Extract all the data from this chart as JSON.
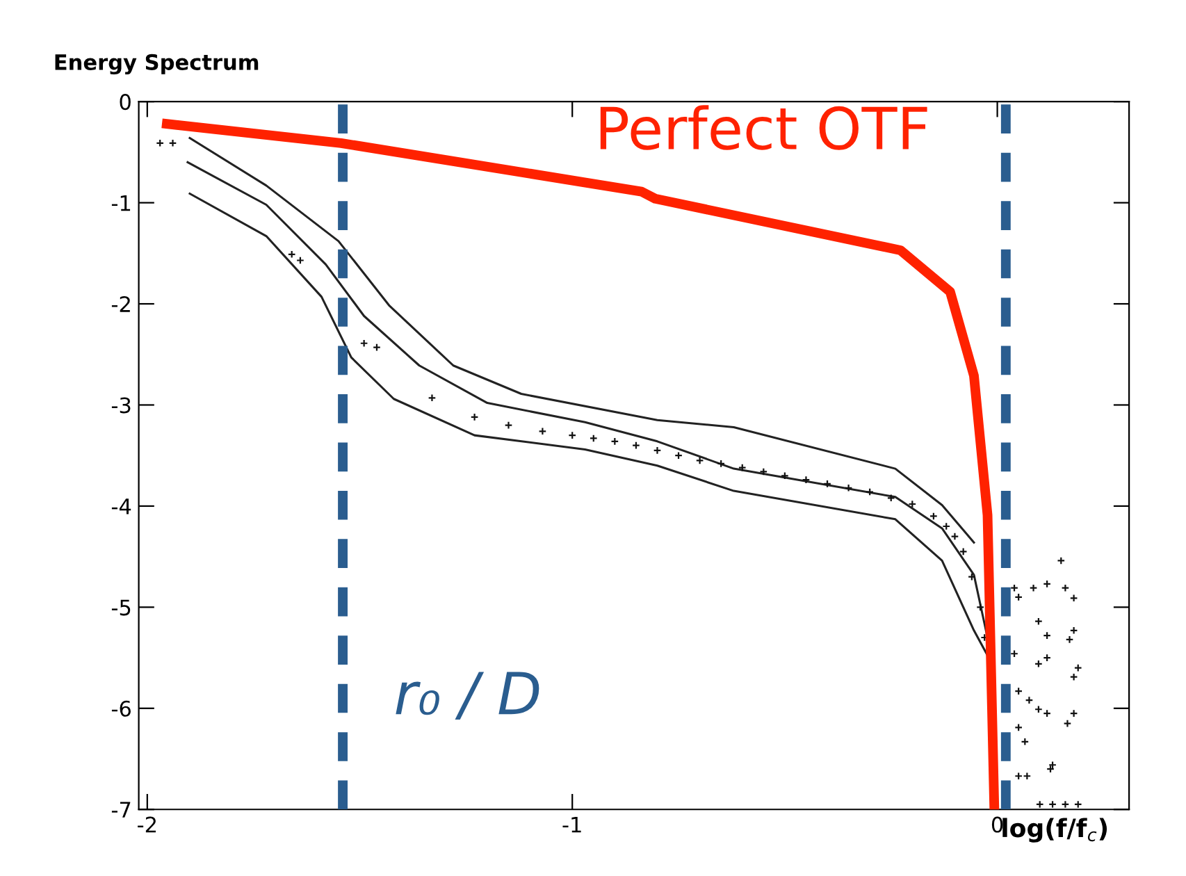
{
  "chart_data": {
    "type": "line",
    "title": "Energy Spectrum",
    "xlabel": "log(f/f$_{c}$)",
    "xlim": [
      -2.02,
      0.31
    ],
    "ylim": [
      -7,
      0
    ],
    "xticks": [
      -2,
      -1,
      0
    ],
    "yticks": [
      0,
      -1,
      -2,
      -3,
      -4,
      -5,
      -6,
      -7
    ],
    "grid": false,
    "legend": false,
    "marker": "none",
    "line_style": "solid",
    "series": [
      {
        "name": "Perfect OTF",
        "color": "#ff2200",
        "x": [
          -1.954,
          -1.544,
          -0.837,
          -0.805,
          -0.228,
          -0.111,
          -0.055,
          -0.023,
          -0.007
        ],
        "values": [
          -0.22,
          -0.41,
          -0.89,
          -0.96,
          -1.47,
          -1.88,
          -2.71,
          -4.09,
          -7
        ]
      },
      {
        "color": "#222222",
        "x": [
          -1.9,
          -1.72,
          -1.55,
          -1.43,
          -1.28,
          -1.12,
          -0.8,
          -0.62,
          -0.24,
          -0.13,
          -0.055
        ],
        "values": [
          -0.36,
          -0.83,
          -1.38,
          -2.02,
          -2.61,
          -2.89,
          -3.15,
          -3.22,
          -3.63,
          -3.99,
          -4.36
        ]
      },
      {
        "color": "#222222",
        "x": [
          -1.905,
          -1.72,
          -1.58,
          -1.49,
          -1.36,
          -1.2,
          -0.97,
          -0.8,
          -0.62,
          -0.24,
          -0.13,
          -0.055,
          -0.02
        ],
        "values": [
          -0.6,
          -1.02,
          -1.61,
          -2.12,
          -2.61,
          -2.98,
          -3.17,
          -3.36,
          -3.63,
          -3.91,
          -4.22,
          -4.68,
          -5.36
        ]
      },
      {
        "color": "#222222",
        "x": [
          -1.9,
          -1.72,
          -1.59,
          -1.52,
          -1.42,
          -1.23,
          -0.97,
          -0.8,
          -0.62,
          -0.24,
          -0.13,
          -0.055,
          -0.02
        ],
        "values": [
          -0.91,
          -1.33,
          -1.93,
          -2.53,
          -2.94,
          -3.3,
          -3.44,
          -3.6,
          -3.85,
          -4.13,
          -4.54,
          -5.23,
          -5.5
        ]
      },
      {
        "type": "scatter",
        "marker": "cross",
        "color": "#111111",
        "x": [
          -1.97,
          -1.94,
          -1.66,
          -1.64,
          -1.49,
          -1.46,
          -1.33,
          -1.23,
          -1.15,
          -1.07,
          -1.0,
          -0.95,
          -0.9,
          -0.85,
          -0.8,
          -0.75,
          -0.7,
          -0.65,
          -0.6,
          -0.55,
          -0.5,
          -0.45,
          -0.4,
          -0.35,
          -0.3,
          -0.25,
          -0.2,
          -0.15,
          -0.12,
          -0.1,
          -0.08,
          -0.06,
          -0.04,
          -0.03,
          0.04,
          0.05,
          0.085,
          0.117,
          0.15,
          0.16,
          0.18,
          0.097,
          0.117,
          0.18,
          0.17,
          0.04,
          0.097,
          0.117,
          0.19,
          0.18,
          0.05,
          0.075,
          0.097,
          0.117,
          0.18,
          0.165,
          0.05,
          0.065,
          0.13,
          0.125,
          0.05,
          0.07,
          0.1,
          0.13,
          0.16,
          0.19
        ],
        "values": [
          -0.41,
          -0.41,
          -1.51,
          -1.57,
          -2.39,
          -2.43,
          -2.93,
          -3.12,
          -3.2,
          -3.26,
          -3.3,
          -3.33,
          -3.36,
          -3.4,
          -3.45,
          -3.5,
          -3.55,
          -3.58,
          -3.62,
          -3.66,
          -3.7,
          -3.74,
          -3.78,
          -3.82,
          -3.86,
          -3.92,
          -3.98,
          -4.1,
          -4.2,
          -4.3,
          -4.45,
          -4.7,
          -5.0,
          -5.3,
          -4.81,
          -4.9,
          -4.81,
          -4.77,
          -4.54,
          -4.81,
          -4.91,
          -5.14,
          -5.28,
          -5.23,
          -5.32,
          -5.46,
          -5.56,
          -5.5,
          -5.6,
          -5.69,
          -5.83,
          -5.92,
          -6.01,
          -6.05,
          -6.05,
          -6.15,
          -6.19,
          -6.33,
          -6.56,
          -6.6,
          -6.67,
          -6.67,
          -6.95,
          -6.95,
          -6.95,
          -6.95
        ]
      }
    ],
    "ref_lines": [
      {
        "axis": "x",
        "value": -1.54,
        "label": "r₀ / D",
        "color": "#2a5d8f",
        "line_style": "dashed"
      },
      {
        "axis": "x",
        "value": 0.02,
        "color": "#2a5d8f",
        "line_style": "dashed"
      }
    ]
  }
}
